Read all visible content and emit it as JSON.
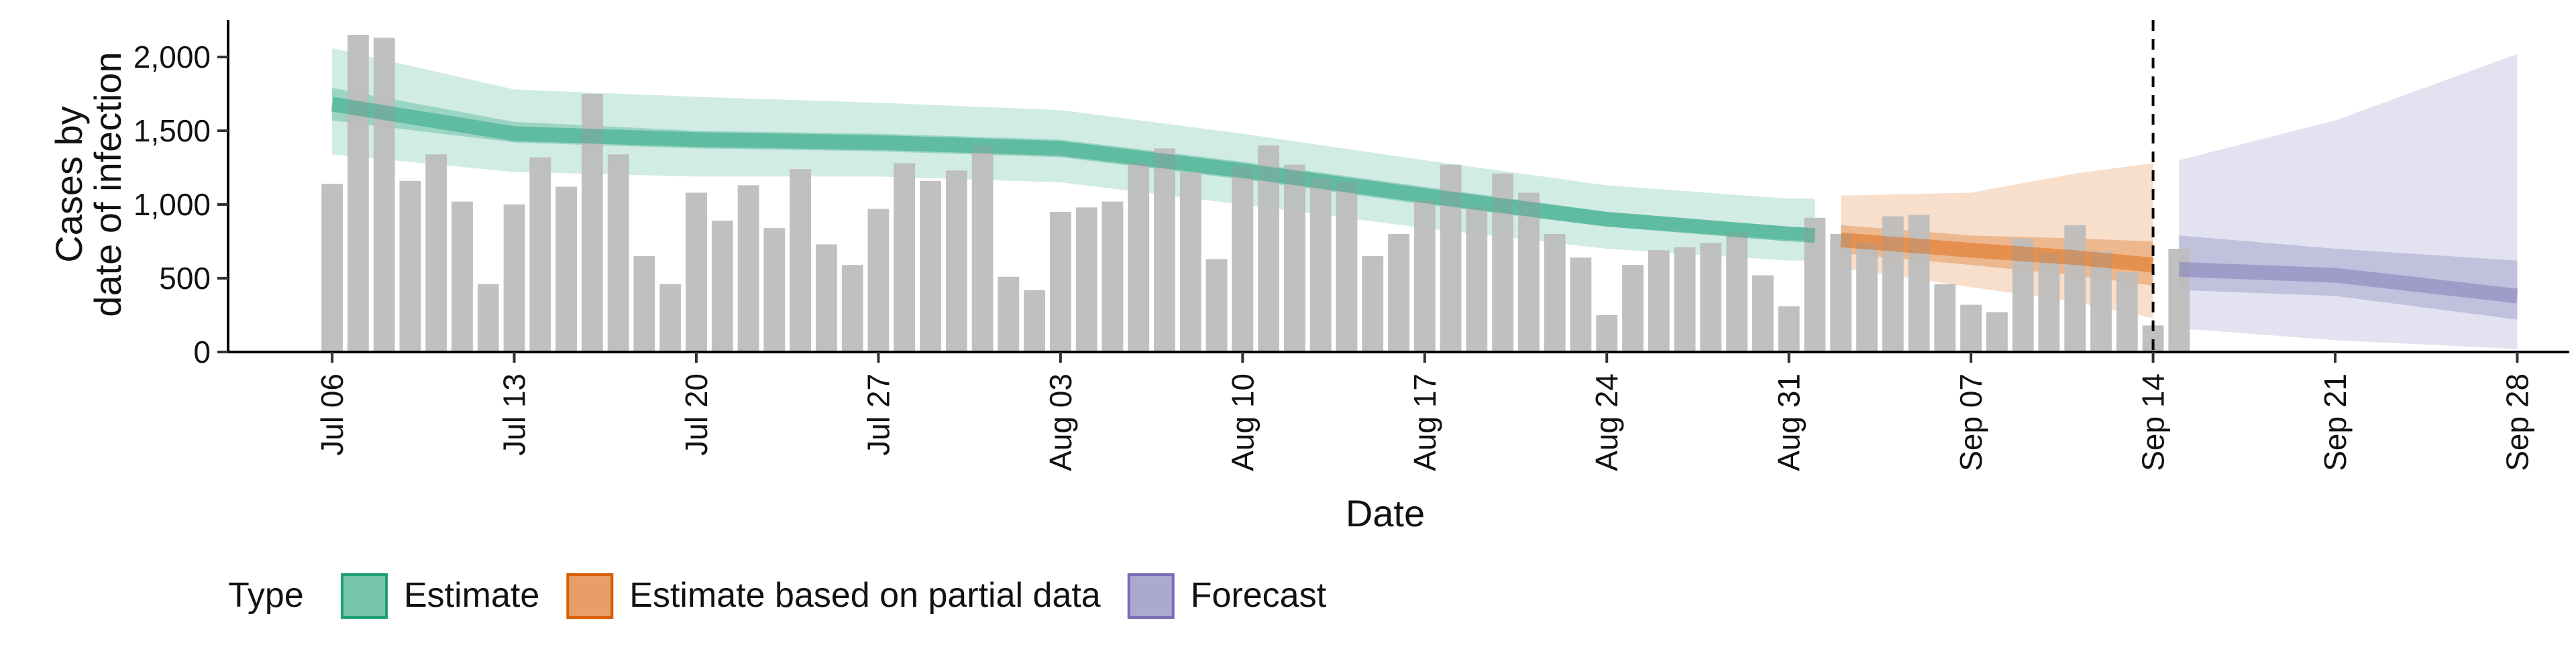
{
  "chart_data": {
    "type": "bar",
    "xlabel": "Date",
    "ylabel_lines": [
      "Cases by",
      "date of infection"
    ],
    "ylim": [
      0,
      2250
    ],
    "yticks": [
      0,
      500,
      1000,
      1500,
      2000
    ],
    "ytick_labels": [
      "0",
      "500",
      "1,000",
      "1,500",
      "2,000"
    ],
    "xlim": [
      "2020-07-02",
      "2020-09-30"
    ],
    "xticks": [
      "2020-07-06",
      "2020-07-13",
      "2020-07-20",
      "2020-07-27",
      "2020-08-03",
      "2020-08-10",
      "2020-08-17",
      "2020-08-24",
      "2020-08-31",
      "2020-09-07",
      "2020-09-14",
      "2020-09-21",
      "2020-09-28"
    ],
    "xtick_labels": [
      "Jul 06",
      "Jul 13",
      "Jul 20",
      "Jul 27",
      "Aug 03",
      "Aug 10",
      "Aug 17",
      "Aug 24",
      "Aug 31",
      "Sep 07",
      "Sep 14",
      "Sep 21",
      "Sep 28"
    ],
    "forecast_line_date": "2020-09-14",
    "bar_color": "#bdbdbd",
    "bars": {
      "start_date": "2020-07-06",
      "values": [
        1140,
        2150,
        2130,
        1160,
        1340,
        1020,
        460,
        1000,
        1320,
        1120,
        1750,
        1340,
        650,
        460,
        1080,
        890,
        1130,
        840,
        1240,
        730,
        590,
        970,
        1280,
        1160,
        1230,
        1400,
        510,
        420,
        950,
        980,
        1020,
        1280,
        1380,
        1220,
        630,
        1260,
        1400,
        1270,
        1180,
        1150,
        650,
        800,
        1030,
        1270,
        980,
        1210,
        1080,
        800,
        640,
        250,
        590,
        690,
        710,
        740,
        810,
        520,
        310,
        910,
        800,
        740,
        920,
        930,
        460,
        320,
        270,
        770,
        670,
        860,
        680,
        540,
        180,
        700
      ]
    },
    "legend_title": "Type",
    "series": [
      {
        "name": "Estimate",
        "color": "#1b9e77",
        "dates": [
          "2020-07-06",
          "2020-07-13",
          "2020-07-20",
          "2020-07-27",
          "2020-08-03",
          "2020-08-10",
          "2020-08-17",
          "2020-08-24",
          "2020-08-31",
          "2020-09-01"
        ],
        "median": [
          1680,
          1480,
          1440,
          1420,
          1380,
          1230,
          1060,
          900,
          800,
          790
        ],
        "inner_lower": [
          1570,
          1420,
          1380,
          1360,
          1320,
          1170,
          1000,
          850,
          760,
          760
        ],
        "inner_upper": [
          1790,
          1560,
          1500,
          1480,
          1440,
          1290,
          1120,
          950,
          850,
          840
        ],
        "outer_lower": [
          1340,
          1220,
          1190,
          1190,
          1150,
          1000,
          840,
          700,
          620,
          620
        ],
        "outer_upper": [
          2060,
          1780,
          1730,
          1690,
          1640,
          1480,
          1300,
          1130,
          1040,
          1040
        ]
      },
      {
        "name": "Estimate based on partial data",
        "color": "#d95f02",
        "dates": [
          "2020-09-02",
          "2020-09-07",
          "2020-09-11",
          "2020-09-14"
        ],
        "median": [
          760,
          690,
          640,
          590
        ],
        "inner_lower": [
          670,
          590,
          520,
          450
        ],
        "inner_upper": [
          860,
          790,
          770,
          750
        ],
        "outer_lower": [
          570,
          440,
          340,
          230
        ],
        "outer_upper": [
          1060,
          1080,
          1210,
          1280
        ]
      },
      {
        "name": "Forecast",
        "color": "#7570b3",
        "dates": [
          "2020-09-15",
          "2020-09-21",
          "2020-09-28"
        ],
        "median": [
          560,
          520,
          380
        ],
        "inner_lower": [
          420,
          380,
          220
        ],
        "inner_upper": [
          790,
          700,
          620
        ],
        "outer_lower": [
          160,
          80,
          20
        ],
        "outer_upper": [
          1300,
          1570,
          2020
        ]
      }
    ]
  }
}
